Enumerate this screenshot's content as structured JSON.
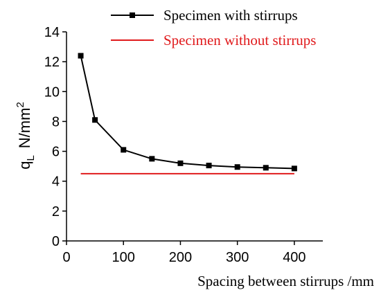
{
  "chart_data": {
    "type": "line",
    "xlabel": "Spacing between stirrups /mm",
    "ylabel": {
      "main": "q",
      "sub": "L",
      "unit": "N/mm",
      "sup": "2"
    },
    "xlim": [
      0,
      450
    ],
    "ylim": [
      0,
      14
    ],
    "x_ticks": [
      0,
      100,
      200,
      300,
      400
    ],
    "y_ticks": [
      0,
      2,
      4,
      6,
      8,
      10,
      12,
      14
    ],
    "grid": false,
    "legend_position": "top-right",
    "series": [
      {
        "name": "Specimen with stirrups",
        "color": "#000000",
        "marker": "square",
        "x": [
          25,
          50,
          100,
          150,
          200,
          250,
          300,
          350,
          400
        ],
        "y": [
          12.4,
          8.1,
          6.1,
          5.5,
          5.2,
          5.05,
          4.95,
          4.9,
          4.85
        ]
      },
      {
        "name": "Specimen without stirrups",
        "color": "#e0191b",
        "marker": "none",
        "x": [
          25,
          400
        ],
        "y": [
          4.5,
          4.5
        ]
      }
    ]
  }
}
